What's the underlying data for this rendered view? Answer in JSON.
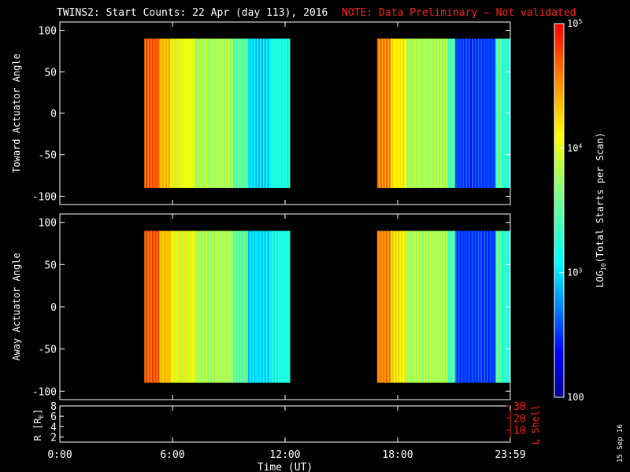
{
  "chart_data": {
    "type": "heatmap",
    "title": "TWINS2: Start Counts: 22 Apr (day 113), 2016",
    "note": "NOTE: Data Preliminary — Not validated",
    "xlabel": "Time (UT)",
    "x_ticks": [
      "0:00",
      "6:00",
      "12:00",
      "18:00",
      "23:59"
    ],
    "x_tick_hours": [
      0,
      6,
      12,
      18,
      24
    ],
    "xlim_hours": [
      0,
      24
    ],
    "date_stamp": "15 Sep 16",
    "data_windows_hours": [
      [
        4.5,
        12.25
      ],
      [
        16.9,
        24
      ]
    ],
    "panels": [
      {
        "ylabel": "Toward Actuator Angle",
        "ylim": [
          -110,
          110
        ],
        "y_ticks": [
          100,
          50,
          0,
          -50,
          -100
        ],
        "angle_range": [
          -90,
          90
        ]
      },
      {
        "ylabel": "Away Actuator Angle",
        "ylim": [
          -110,
          110
        ],
        "y_ticks": [
          100,
          50,
          0,
          -50,
          -100
        ],
        "angle_range": [
          -90,
          90
        ]
      }
    ],
    "colorbar": {
      "label": "LOG10(Total Starts per Scan)",
      "label_main": "LOG",
      "label_sub": "10",
      "label_rest": "(Total Starts per Scan)",
      "range": [
        100,
        100000
      ],
      "ticks": [
        {
          "value": 100,
          "label": "100"
        },
        {
          "value": 1000,
          "base": "10",
          "exp": "3"
        },
        {
          "value": 10000,
          "base": "10",
          "exp": "4"
        },
        {
          "value": 100000,
          "base": "10",
          "exp": "5"
        }
      ]
    },
    "orbit_panel": {
      "left_label": "R [R",
      "left_label_sub": "E",
      "left_label_end": "]",
      "left_ylim": [
        1,
        8
      ],
      "left_ticks": [
        "2",
        "4",
        "6",
        "8"
      ],
      "right_label": "L Shell",
      "right_ylim": [
        0,
        30
      ],
      "right_ticks": [
        "10",
        "20",
        "30"
      ]
    }
  }
}
